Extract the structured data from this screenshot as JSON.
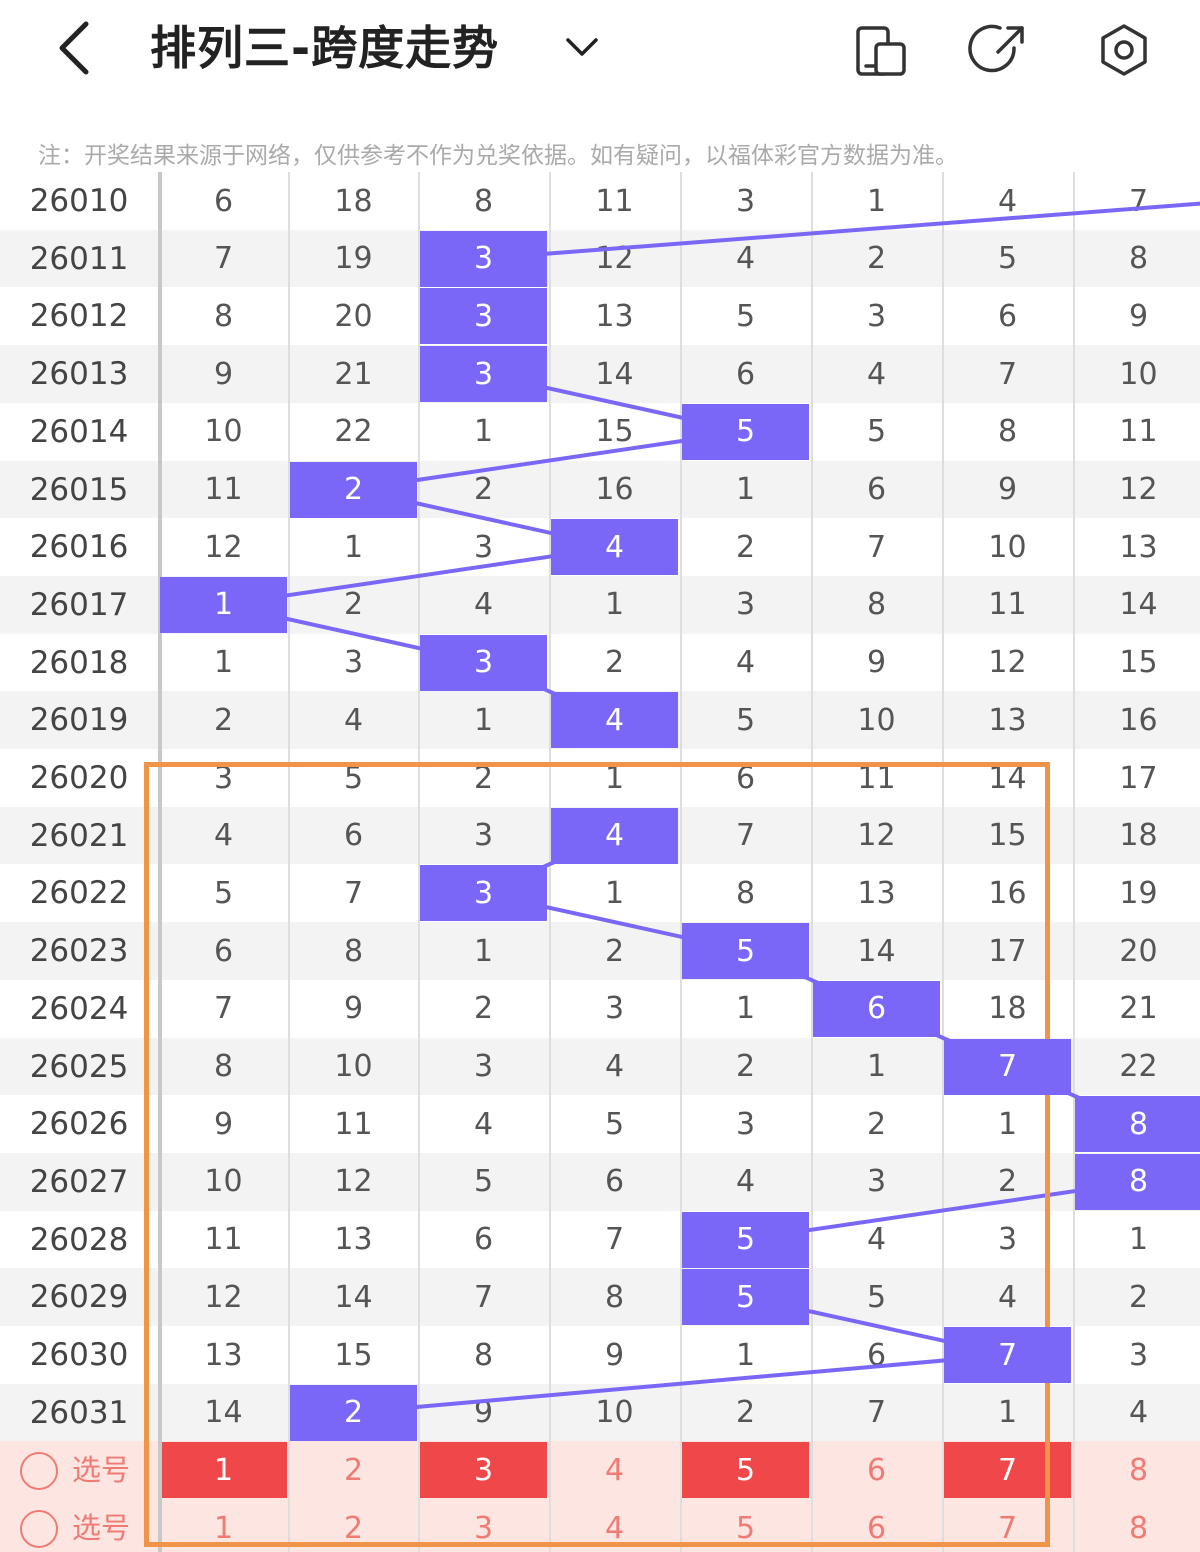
{
  "header": {
    "title": "排列三-跨度走势",
    "icons": [
      "back-icon",
      "chevron-down-icon",
      "device-icon",
      "share-icon",
      "settings-icon"
    ]
  },
  "note": "注：开奖结果来源于网络，仅供参考不作为兑奖依据。如有疑问，以福体彩官方数据为准。",
  "colors": {
    "hit": "#7a67f7",
    "line": "#7a67f7",
    "select_on": "#f0474a",
    "select_bg": "#fde6e1",
    "highlight_box": "#f0944a"
  },
  "rows": [
    {
      "issue": "26010",
      "cells": [
        "6",
        "18",
        "8",
        "11",
        "3",
        "1",
        "4",
        "7"
      ],
      "hit": -1
    },
    {
      "issue": "26011",
      "cells": [
        "7",
        "19",
        "3",
        "12",
        "4",
        "2",
        "5",
        "8"
      ],
      "hit": 2
    },
    {
      "issue": "26012",
      "cells": [
        "8",
        "20",
        "3",
        "13",
        "5",
        "3",
        "6",
        "9"
      ],
      "hit": 2
    },
    {
      "issue": "26013",
      "cells": [
        "9",
        "21",
        "3",
        "14",
        "6",
        "4",
        "7",
        "10"
      ],
      "hit": 2
    },
    {
      "issue": "26014",
      "cells": [
        "10",
        "22",
        "1",
        "15",
        "5",
        "5",
        "8",
        "11"
      ],
      "hit": 4
    },
    {
      "issue": "26015",
      "cells": [
        "11",
        "2",
        "2",
        "16",
        "1",
        "6",
        "9",
        "12"
      ],
      "hit": 1
    },
    {
      "issue": "26016",
      "cells": [
        "12",
        "1",
        "3",
        "4",
        "2",
        "7",
        "10",
        "13"
      ],
      "hit": 3
    },
    {
      "issue": "26017",
      "cells": [
        "1",
        "2",
        "4",
        "1",
        "3",
        "8",
        "11",
        "14"
      ],
      "hit": 0
    },
    {
      "issue": "26018",
      "cells": [
        "1",
        "3",
        "3",
        "2",
        "4",
        "9",
        "12",
        "15"
      ],
      "hit": 2
    },
    {
      "issue": "26019",
      "cells": [
        "2",
        "4",
        "1",
        "4",
        "5",
        "10",
        "13",
        "16"
      ],
      "hit": 3
    },
    {
      "issue": "26020",
      "cells": [
        "3",
        "5",
        "2",
        "1",
        "6",
        "11",
        "14",
        "17"
      ],
      "hit": -1
    },
    {
      "issue": "26021",
      "cells": [
        "4",
        "6",
        "3",
        "4",
        "7",
        "12",
        "15",
        "18"
      ],
      "hit": 3
    },
    {
      "issue": "26022",
      "cells": [
        "5",
        "7",
        "3",
        "1",
        "8",
        "13",
        "16",
        "19"
      ],
      "hit": 2
    },
    {
      "issue": "26023",
      "cells": [
        "6",
        "8",
        "1",
        "2",
        "5",
        "14",
        "17",
        "20"
      ],
      "hit": 4
    },
    {
      "issue": "26024",
      "cells": [
        "7",
        "9",
        "2",
        "3",
        "1",
        "6",
        "18",
        "21"
      ],
      "hit": 5
    },
    {
      "issue": "26025",
      "cells": [
        "8",
        "10",
        "3",
        "4",
        "2",
        "1",
        "7",
        "22"
      ],
      "hit": 6
    },
    {
      "issue": "26026",
      "cells": [
        "9",
        "11",
        "4",
        "5",
        "3",
        "2",
        "1",
        "8"
      ],
      "hit": 7
    },
    {
      "issue": "26027",
      "cells": [
        "10",
        "12",
        "5",
        "6",
        "4",
        "3",
        "2",
        "8"
      ],
      "hit": 7
    },
    {
      "issue": "26028",
      "cells": [
        "11",
        "13",
        "6",
        "7",
        "5",
        "4",
        "3",
        "1"
      ],
      "hit": 4
    },
    {
      "issue": "26029",
      "cells": [
        "12",
        "14",
        "7",
        "8",
        "5",
        "5",
        "4",
        "2"
      ],
      "hit": 4
    },
    {
      "issue": "26030",
      "cells": [
        "13",
        "15",
        "8",
        "9",
        "1",
        "6",
        "7",
        "3"
      ],
      "hit": 6
    },
    {
      "issue": "26031",
      "cells": [
        "14",
        "2",
        "9",
        "10",
        "2",
        "7",
        "1",
        "4"
      ],
      "hit": 1
    }
  ],
  "select_rows": [
    {
      "label": "选号",
      "values": [
        "1",
        "2",
        "3",
        "4",
        "5",
        "6",
        "7",
        "8"
      ],
      "on": [
        true,
        false,
        true,
        false,
        true,
        false,
        true,
        false
      ]
    },
    {
      "label": "选号",
      "values": [
        "1",
        "2",
        "3",
        "4",
        "5",
        "6",
        "7",
        "8"
      ],
      "on": [
        false,
        false,
        false,
        false,
        false,
        false,
        false,
        false
      ]
    }
  ]
}
